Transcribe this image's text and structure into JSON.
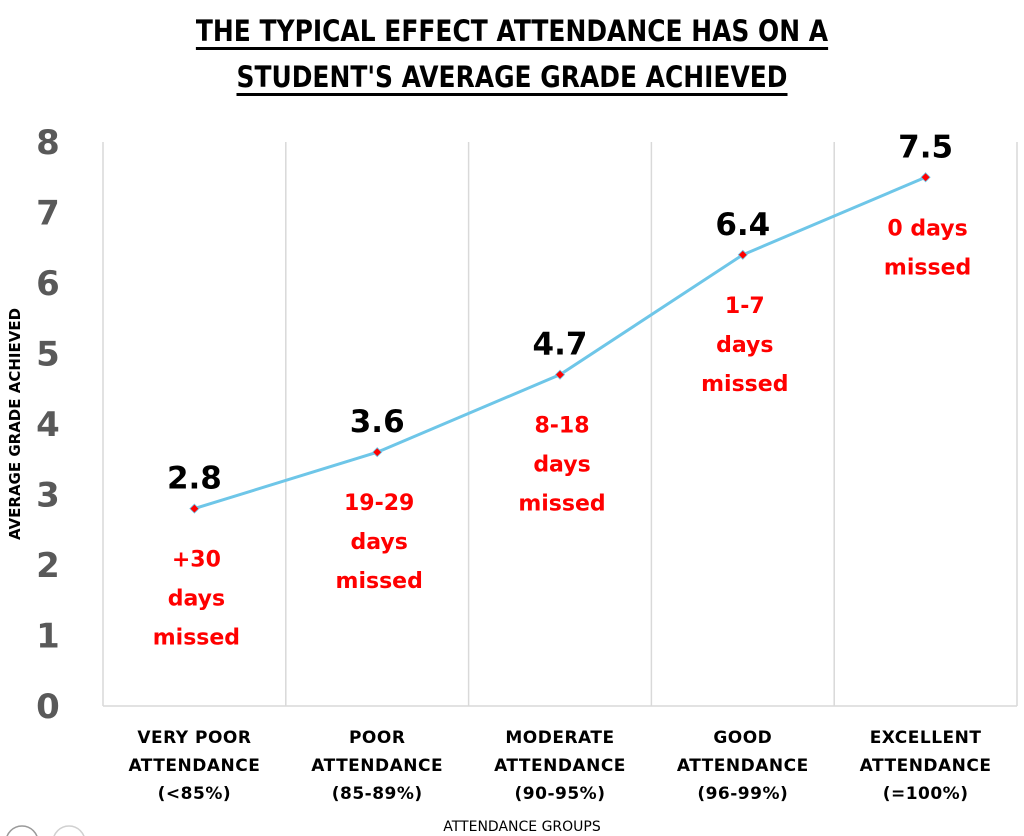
{
  "colors": {
    "line": "#6ec6e8",
    "marker": "#ff0000",
    "grid": "#d9d9d9",
    "annotation": "#ff0000",
    "tick": "#595959"
  },
  "chart_data": {
    "type": "line",
    "title_lines": [
      "THE TYPICAL EFFECT ATTENDANCE HAS ON A",
      "STUDENT'S AVERAGE GRADE ACHIEVED"
    ],
    "xlabel": "ATTENDANCE GROUPS",
    "ylabel": "AVERAGE GRADE ACHIEVED",
    "ylim": [
      0,
      8
    ],
    "yticks": [
      "0",
      "1",
      "2",
      "3",
      "4",
      "5",
      "6",
      "7",
      "8"
    ],
    "grid": "vertical",
    "categories": [
      [
        "VERY POOR",
        "ATTENDANCE",
        "(<85%)"
      ],
      [
        "POOR",
        "ATTENDANCE",
        "(85-89%)"
      ],
      [
        "MODERATE",
        "ATTENDANCE",
        "(90-95%)"
      ],
      [
        "GOOD",
        "ATTENDANCE",
        "(96-99%)"
      ],
      [
        "EXCELLENT",
        "ATTENDANCE",
        "(=100%)"
      ]
    ],
    "series": [
      {
        "name": "Average grade",
        "values": [
          2.8,
          3.6,
          4.7,
          6.4,
          7.5
        ],
        "data_labels": [
          "2.8",
          "3.6",
          "4.7",
          "6.4",
          "7.5"
        ]
      }
    ],
    "annotations": [
      [
        "+30",
        "days",
        "missed"
      ],
      [
        "19-29",
        "days",
        "missed"
      ],
      [
        "8-18",
        "days",
        "missed"
      ],
      [
        "1-7",
        "days",
        "missed"
      ],
      [
        "0 days",
        "missed"
      ]
    ]
  }
}
